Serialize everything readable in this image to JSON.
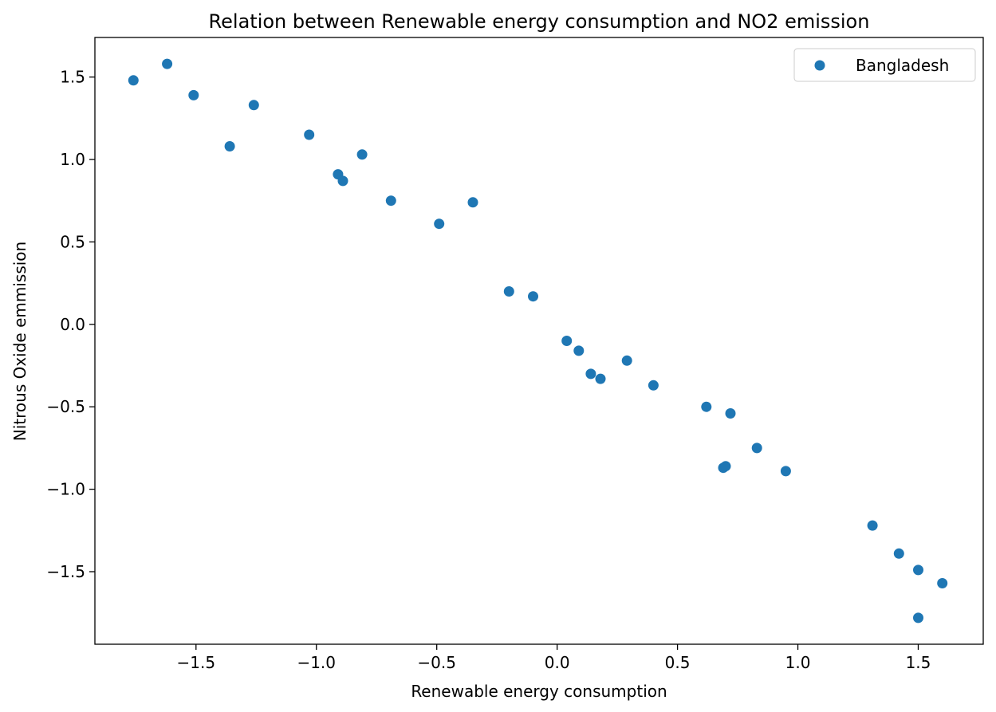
{
  "chart_data": {
    "type": "scatter",
    "title": "Relation between Renewable energy consumption and NO2 emission",
    "xlabel": "Renewable energy consumption",
    "ylabel": "Nitrous Oxide emmission",
    "xlim": [
      -1.92,
      1.77
    ],
    "ylim": [
      -1.94,
      1.74
    ],
    "xticks": [
      -1.5,
      -1.0,
      -0.5,
      0.0,
      0.5,
      1.0,
      1.5
    ],
    "yticks": [
      -1.5,
      -1.0,
      -0.5,
      0.0,
      0.5,
      1.0,
      1.5
    ],
    "xtick_labels": [
      "−1.5",
      "−1.0",
      "−0.5",
      "0.0",
      "0.5",
      "1.0",
      "1.5"
    ],
    "ytick_labels": [
      "−1.5",
      "−1.0",
      "−0.5",
      "0.0",
      "0.5",
      "1.0",
      "1.5"
    ],
    "grid": false,
    "legend_position": "top-right",
    "series": [
      {
        "name": "Bangladesh",
        "color": "#1f77b4",
        "points": [
          [
            -1.76,
            1.48
          ],
          [
            -1.62,
            1.58
          ],
          [
            -1.51,
            1.39
          ],
          [
            -1.36,
            1.08
          ],
          [
            -1.26,
            1.33
          ],
          [
            -1.03,
            1.15
          ],
          [
            -0.91,
            0.91
          ],
          [
            -0.89,
            0.87
          ],
          [
            -0.81,
            1.03
          ],
          [
            -0.69,
            0.75
          ],
          [
            -0.49,
            0.61
          ],
          [
            -0.35,
            0.74
          ],
          [
            -0.2,
            0.2
          ],
          [
            -0.1,
            0.17
          ],
          [
            0.04,
            -0.1
          ],
          [
            0.09,
            -0.16
          ],
          [
            0.14,
            -0.3
          ],
          [
            0.18,
            -0.33
          ],
          [
            0.29,
            -0.22
          ],
          [
            0.4,
            -0.37
          ],
          [
            0.62,
            -0.5
          ],
          [
            0.72,
            -0.54
          ],
          [
            0.69,
            -0.87
          ],
          [
            0.7,
            -0.86
          ],
          [
            0.83,
            -0.75
          ],
          [
            0.95,
            -0.89
          ],
          [
            1.31,
            -1.22
          ],
          [
            1.42,
            -1.39
          ],
          [
            1.5,
            -1.49
          ],
          [
            1.6,
            -1.57
          ],
          [
            1.5,
            -1.78
          ]
        ]
      }
    ]
  }
}
